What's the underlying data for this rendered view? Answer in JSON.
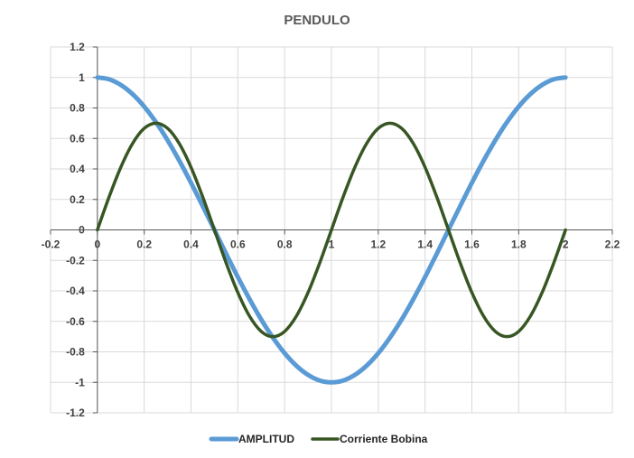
{
  "chart_data": {
    "type": "line",
    "title": "PENDULO",
    "xlabel": "",
    "ylabel": "",
    "xlim": [
      -0.2,
      2.2
    ],
    "ylim": [
      -1.2,
      1.2
    ],
    "xticks": [
      "-0.2",
      "0",
      "0.2",
      "0.4",
      "0.6",
      "0.8",
      "1",
      "1.2",
      "1.4",
      "1.6",
      "1.8",
      "2",
      "2.2"
    ],
    "yticks": [
      "1.2",
      "1",
      "0.8",
      "0.6",
      "0.4",
      "0.2",
      "0",
      "-0.2",
      "-0.4",
      "-0.6",
      "-0.8",
      "-1",
      "-1.2"
    ],
    "grid": true,
    "legend_position": "bottom",
    "x": [
      0,
      0.05,
      0.1,
      0.15,
      0.2,
      0.25,
      0.3,
      0.35,
      0.4,
      0.45,
      0.5,
      0.55,
      0.6,
      0.65,
      0.7,
      0.75,
      0.8,
      0.85,
      0.9,
      0.95,
      1.0,
      1.05,
      1.1,
      1.15,
      1.2,
      1.25,
      1.3,
      1.35,
      1.4,
      1.45,
      1.5,
      1.55,
      1.6,
      1.65,
      1.7,
      1.75,
      1.8,
      1.85,
      1.9,
      1.95,
      2.0
    ],
    "series": [
      {
        "name": "AMPLITUD",
        "color": "#5b9bd5",
        "values": [
          1.0,
          0.988,
          0.951,
          0.891,
          0.809,
          0.707,
          0.588,
          0.454,
          0.309,
          0.156,
          0.0,
          -0.156,
          -0.309,
          -0.454,
          -0.588,
          -0.707,
          -0.809,
          -0.891,
          -0.951,
          -0.988,
          -1.0,
          -0.988,
          -0.951,
          -0.891,
          -0.809,
          -0.707,
          -0.588,
          -0.454,
          -0.309,
          -0.156,
          0.0,
          0.156,
          0.309,
          0.454,
          0.588,
          0.707,
          0.809,
          0.891,
          0.951,
          0.988,
          1.0
        ]
      },
      {
        "name": "Corriente Bobina",
        "color": "#375623",
        "values": [
          0.0,
          0.216,
          0.411,
          0.566,
          0.666,
          0.7,
          0.666,
          0.566,
          0.411,
          0.216,
          0.0,
          -0.216,
          -0.411,
          -0.566,
          -0.666,
          -0.7,
          -0.666,
          -0.566,
          -0.411,
          -0.216,
          0.0,
          0.216,
          0.411,
          0.566,
          0.666,
          0.7,
          0.666,
          0.566,
          0.411,
          0.216,
          0.0,
          -0.216,
          -0.411,
          -0.566,
          -0.666,
          -0.7,
          -0.666,
          -0.566,
          -0.411,
          -0.216,
          0.0
        ]
      }
    ]
  }
}
